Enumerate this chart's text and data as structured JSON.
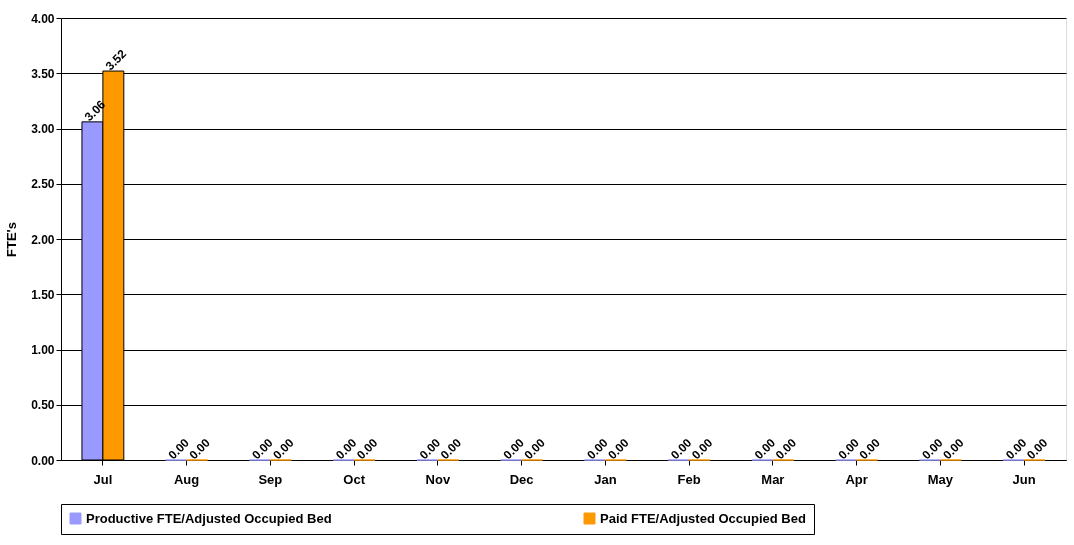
{
  "chart_data": {
    "type": "bar",
    "ylabel": "FTE's",
    "categories": [
      "Jul",
      "Aug",
      "Sep",
      "Oct",
      "Nov",
      "Dec",
      "Jan",
      "Feb",
      "Mar",
      "Apr",
      "May",
      "Jun"
    ],
    "series": [
      {
        "name": "Productive FTE/Adjusted Occupied Bed",
        "color": "#9999ff",
        "values": [
          3.06,
          0,
          0,
          0,
          0,
          0,
          0,
          0,
          0,
          0,
          0,
          0
        ],
        "value_labels": [
          "3.06",
          "0.00",
          "0.00",
          "0.00",
          "0.00",
          "0.00",
          "0.00",
          "0.00",
          "0.00",
          "0.00",
          "0.00",
          "0.00"
        ]
      },
      {
        "name": "Paid FTE/Adjusted Occupied Bed",
        "color": "#ff9900",
        "values": [
          3.52,
          0,
          0,
          0,
          0,
          0,
          0,
          0,
          0,
          0,
          0,
          0
        ],
        "value_labels": [
          "3.52",
          "0.00",
          "0.00",
          "0.00",
          "0.00",
          "0.00",
          "0.00",
          "0.00",
          "0.00",
          "0.00",
          "0.00",
          "0.00"
        ]
      }
    ],
    "ylim": [
      0,
      4
    ],
    "yticks": [
      {
        "value": 0,
        "label": "0.00"
      },
      {
        "value": 0.5,
        "label": "0.50"
      },
      {
        "value": 1,
        "label": "1.00"
      },
      {
        "value": 1.5,
        "label": "1.50"
      },
      {
        "value": 2,
        "label": "2.00"
      },
      {
        "value": 2.5,
        "label": "2.50"
      },
      {
        "value": 3,
        "label": "3.00"
      },
      {
        "value": 3.5,
        "label": "3.50"
      },
      {
        "value": 4,
        "label": "4.00"
      }
    ],
    "grid": "y",
    "legend": "bottom"
  }
}
